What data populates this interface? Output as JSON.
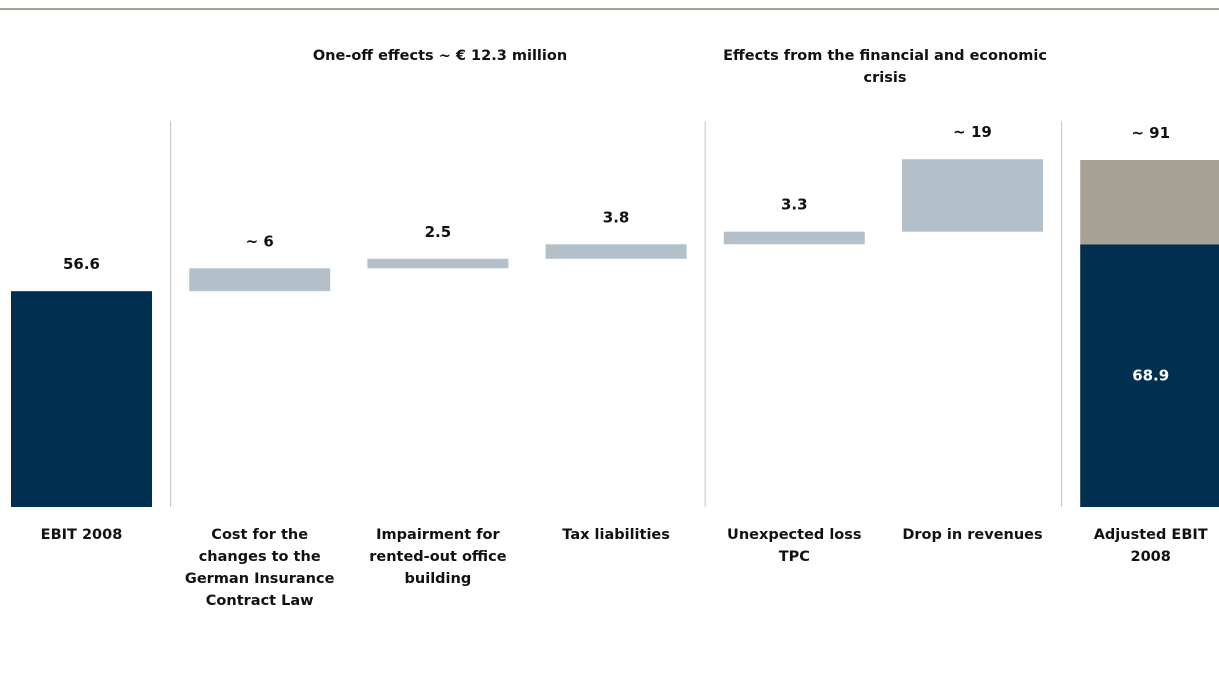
{
  "groups": [
    {
      "title": "One-off effects ~ € 12.3 million"
    },
    {
      "title": "Effects from the financial and economic crisis"
    }
  ],
  "colors": {
    "navy": "#002f50",
    "gray_blue": "#b4c0c9",
    "taupe": "#a8a195",
    "divider": "#c4c4c4",
    "rule": "#a8a295"
  },
  "chart_data": {
    "type": "waterfall",
    "categories": [
      "EBIT 2008",
      "Cost for the changes to the German Insurance Contract Law",
      "Impairment for rented-out office building",
      "Tax liabilities",
      "Unexpected loss TPC",
      "Drop in revenues",
      "Adjusted EBIT 2008"
    ],
    "bars": [
      {
        "kind": "total",
        "base": 0,
        "value": 56.6,
        "label": "56.6"
      },
      {
        "kind": "delta",
        "base": 56.6,
        "value": 6,
        "label": "~ 6"
      },
      {
        "kind": "delta",
        "base": 62.6,
        "value": 2.5,
        "label": "2.5"
      },
      {
        "kind": "delta",
        "base": 65.1,
        "value": 3.8,
        "label": "3.8"
      },
      {
        "kind": "delta",
        "base": 68.9,
        "value": 3.3,
        "label": "3.3"
      },
      {
        "kind": "delta",
        "base": 72.2,
        "value": 19,
        "label": "~ 19"
      },
      {
        "kind": "stacked_total",
        "segments": [
          {
            "value": 68.9,
            "label": "68.9"
          },
          {
            "value": 22.1
          }
        ],
        "total_label": "~ 91"
      }
    ],
    "ylim": [
      0,
      91
    ]
  }
}
